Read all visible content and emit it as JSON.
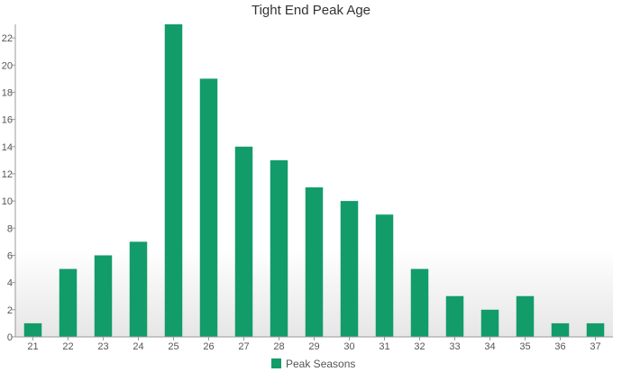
{
  "chart_data": {
    "type": "bar",
    "title": "Tight End Peak Age",
    "xlabel": "",
    "ylabel": "",
    "categories": [
      "21",
      "22",
      "23",
      "24",
      "25",
      "26",
      "27",
      "28",
      "29",
      "30",
      "31",
      "32",
      "33",
      "34",
      "35",
      "36",
      "37"
    ],
    "series": [
      {
        "name": "Peak Seasons",
        "values": [
          1,
          5,
          6,
          7,
          23,
          19,
          14,
          13,
          11,
          10,
          9,
          5,
          3,
          2,
          3,
          1,
          1
        ],
        "color": "#129C6A"
      }
    ],
    "ylim": [
      0,
      23
    ],
    "yticks": [
      0,
      2,
      4,
      6,
      8,
      10,
      12,
      14,
      16,
      18,
      20,
      22
    ],
    "grid": false,
    "legend_position": "bottom-center"
  }
}
